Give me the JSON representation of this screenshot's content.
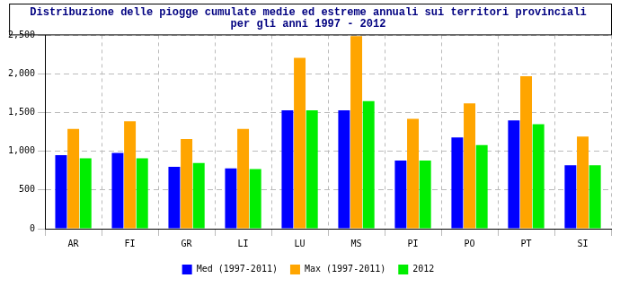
{
  "chart_data": {
    "type": "bar",
    "title": [
      "Distribuzione delle piogge cumulate medie ed estreme annuali sui territori provinciali",
      "per gli anni 1997 - 2012"
    ],
    "categories": [
      "AR",
      "FI",
      "GR",
      "LI",
      "LU",
      "MS",
      "PI",
      "PO",
      "PT",
      "SI"
    ],
    "series": [
      {
        "name": "Med (1997-2011)",
        "color": "#0000ff",
        "values": [
          950,
          980,
          800,
          780,
          1530,
          1530,
          880,
          1180,
          1400,
          820
        ]
      },
      {
        "name": "Max (1997-2011)",
        "color": "#ffa500",
        "values": [
          1290,
          1390,
          1160,
          1290,
          2210,
          2490,
          1420,
          1620,
          1970,
          1190
        ]
      },
      {
        "name": "2012",
        "color": "#00ee00",
        "values": [
          910,
          910,
          850,
          770,
          1530,
          1650,
          880,
          1080,
          1350,
          820
        ]
      }
    ],
    "ylim": [
      0,
      2500
    ],
    "yticks": [
      0,
      500,
      1000,
      1500,
      2000,
      2500
    ],
    "grid": true,
    "legend": "bottom"
  }
}
